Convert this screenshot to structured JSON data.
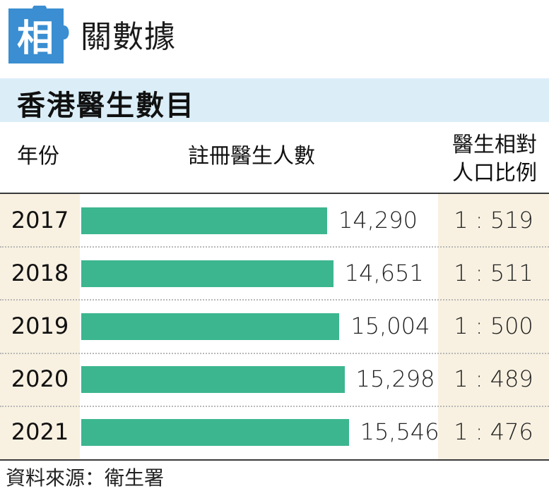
{
  "header": {
    "badge": "相",
    "title": "關數據"
  },
  "chart_data": {
    "type": "bar",
    "title": "香港醫生數目",
    "columns": {
      "year": "年份",
      "count": "註冊醫生人數",
      "ratio_line1": "醫生相對",
      "ratio_line2": "人口比例"
    },
    "categories": [
      "2017",
      "2018",
      "2019",
      "2020",
      "2021"
    ],
    "values": [
      14290,
      14651,
      15004,
      15298,
      15546
    ],
    "value_labels": [
      "14,290",
      "14,651",
      "15,004",
      "15,298",
      "15,546"
    ],
    "ratios": [
      "1 : 519",
      "1 : 511",
      "1 : 500",
      "1 : 489",
      "1 : 476"
    ],
    "colors": {
      "bar": "#3cb68f",
      "badge": "#3a8ed1",
      "banner": "#dbeef8",
      "cell": "#f8f1e1"
    }
  },
  "source": "資料來源：衛生署"
}
